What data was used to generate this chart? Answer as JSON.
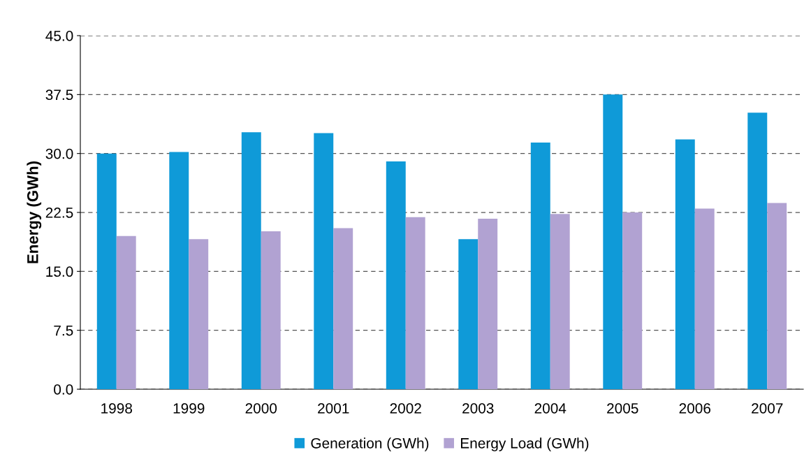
{
  "chart_data": {
    "type": "bar",
    "ylabel": "Energy (GWh)",
    "categories": [
      "1998",
      "1999",
      "2000",
      "2001",
      "2002",
      "2003",
      "2004",
      "2005",
      "2006",
      "2007"
    ],
    "series": [
      {
        "name": "Generation (GWh)",
        "color": "#0f9ad8",
        "values": [
          30.0,
          30.2,
          32.7,
          32.6,
          29.0,
          19.1,
          31.4,
          37.5,
          31.8,
          35.2
        ]
      },
      {
        "name": "Energy Load (GWh)",
        "color": "#b1a2d2",
        "values": [
          19.5,
          19.1,
          20.1,
          20.5,
          21.9,
          21.7,
          22.3,
          22.5,
          23.0,
          23.7
        ]
      }
    ],
    "ylim": [
      0,
      45
    ],
    "yticks": [
      {
        "value": 0,
        "label": "0.0"
      },
      {
        "value": 7.5,
        "label": "7.5"
      },
      {
        "value": 15,
        "label": "15.0"
      },
      {
        "value": 22.5,
        "label": "22.5"
      },
      {
        "value": 30,
        "label": "30.0"
      },
      {
        "value": 37.5,
        "label": "37.5"
      },
      {
        "value": 45,
        "label": "45.0"
      }
    ],
    "grid": "y",
    "legend": "bottom"
  }
}
